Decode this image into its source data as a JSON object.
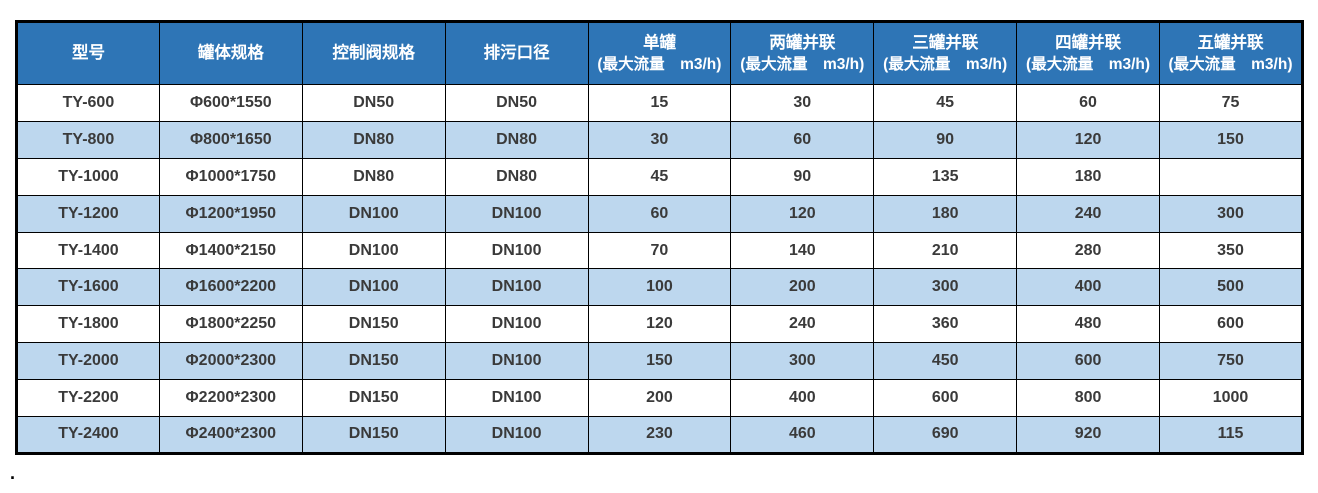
{
  "colors": {
    "header_bg": "#2e75b6",
    "header_text": "#ffffff",
    "stripe_bg": "#bdd7ee",
    "row_bg": "#ffffff",
    "border": "#000000",
    "cell_text": "#3a3a3a"
  },
  "stray_mark": ".",
  "chart_data": {
    "type": "table",
    "title": "",
    "columns": [
      {
        "label": "型号",
        "sub": ""
      },
      {
        "label": "罐体规格",
        "sub": ""
      },
      {
        "label": "控制阀规格",
        "sub": ""
      },
      {
        "label": "排污口径",
        "sub": ""
      },
      {
        "label": "单罐",
        "sub": "(最大流量　m3/h)"
      },
      {
        "label": "两罐并联",
        "sub": "(最大流量　m3/h)"
      },
      {
        "label": "三罐并联",
        "sub": "(最大流量　m3/h)"
      },
      {
        "label": "四罐并联",
        "sub": "(最大流量　m3/h)"
      },
      {
        "label": "五罐并联",
        "sub": "(最大流量　m3/h)"
      }
    ],
    "rows": [
      [
        "TY-600",
        "Φ600*1550",
        "DN50",
        "DN50",
        "15",
        "30",
        "45",
        "60",
        "75"
      ],
      [
        "TY-800",
        "Φ800*1650",
        "DN80",
        "DN80",
        "30",
        "60",
        "90",
        "120",
        "150"
      ],
      [
        "TY-1000",
        "Φ1000*1750",
        "DN80",
        "DN80",
        "45",
        "90",
        "135",
        "180",
        ""
      ],
      [
        "TY-1200",
        "Φ1200*1950",
        "DN100",
        "DN100",
        "60",
        "120",
        "180",
        "240",
        "300"
      ],
      [
        "TY-1400",
        "Φ1400*2150",
        "DN100",
        "DN100",
        "70",
        "140",
        "210",
        "280",
        "350"
      ],
      [
        "TY-1600",
        "Φ1600*2200",
        "DN100",
        "DN100",
        "100",
        "200",
        "300",
        "400",
        "500"
      ],
      [
        "TY-1800",
        "Φ1800*2250",
        "DN150",
        "DN100",
        "120",
        "240",
        "360",
        "480",
        "600"
      ],
      [
        "TY-2000",
        "Φ2000*2300",
        "DN150",
        "DN100",
        "150",
        "300",
        "450",
        "600",
        "750"
      ],
      [
        "TY-2200",
        "Φ2200*2300",
        "DN150",
        "DN100",
        "200",
        "400",
        "600",
        "800",
        "1000"
      ],
      [
        "TY-2400",
        "Φ2400*2300",
        "DN150",
        "DN100",
        "230",
        "460",
        "690",
        "920",
        "115"
      ]
    ],
    "striped_row_indices": [
      1,
      3,
      5,
      7,
      9
    ],
    "legend_position": "none",
    "grid": true
  }
}
